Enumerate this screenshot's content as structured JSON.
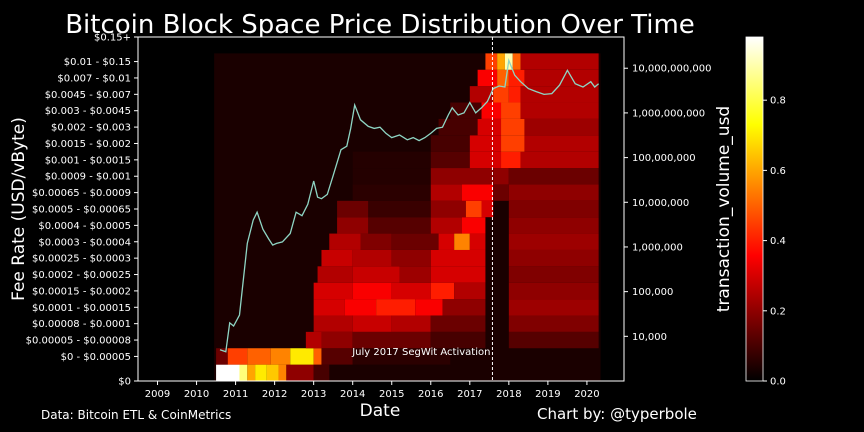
{
  "chart_data": {
    "type": "heatmap",
    "title": "Bitcoin Block Space Price Distribution Over Time",
    "xlabel": "Date",
    "ylabel": "Fee Rate (USD/vByte)",
    "y2label": "transaction_volume_usd",
    "footer_left": "Data: Bitcoin ETL & CoinMetrics",
    "footer_right": "Chart by: @typerbole",
    "annotation": {
      "text": "July 2017 SegWit Activation",
      "x": 2017.58
    },
    "xlim": [
      2008.5,
      2020.95
    ],
    "x_ticks": [
      "2009",
      "2010",
      "2011",
      "2012",
      "2013",
      "2014",
      "2015",
      "2016",
      "2017",
      "2018",
      "2019",
      "2020"
    ],
    "y_bins": [
      "$0",
      "$0 - $0.00005",
      "$0.00005 - $0.00008",
      "$0.00008 - $0.0001",
      "$0.0001 - $0.00015",
      "$0.00015 - $0.0002",
      "$0.0002 - $0.00025",
      "$0.00025 - $0.0003",
      "$0.0003 - $0.0004",
      "$0.0004 - $0.0005",
      "$0.0005 - $0.00065",
      "$0.00065 - $0.0009",
      "$0.0009 - $0.001",
      "$0.001 - $0.0015",
      "$0.0015 - $0.002",
      "$0.002 - $0.003",
      "$0.003 - $0.0045",
      "$0.0045 - $0.007",
      "$0.007 - $0.01",
      "$0.01 - $0.15",
      "$0.15+"
    ],
    "y2_scale": "log",
    "y2lim": [
      1000,
      50000000000
    ],
    "y2_ticks": [
      "10,000",
      "100,000",
      "1,000,000",
      "10,000,000",
      "100,000,000",
      "1,000,000,000",
      "10,000,000,000"
    ],
    "y2_tick_values": [
      10000,
      100000,
      1000000,
      10000000,
      100000000,
      1000000000,
      10000000000
    ],
    "colorbar": {
      "ticks": [
        "0.0",
        "0.2",
        "0.4",
        "0.6",
        "0.8"
      ],
      "tick_values": [
        0,
        0.2,
        0.4,
        0.6,
        0.8
      ],
      "max": 0.98
    },
    "heat_rows": [
      {
        "bin": 0,
        "segments": [
          [
            2010.5,
            2011.1,
            0.98
          ],
          [
            2011.1,
            2011.3,
            0.85
          ],
          [
            2011.3,
            2011.5,
            0.6
          ],
          [
            2011.5,
            2011.8,
            0.7
          ],
          [
            2011.8,
            2012.1,
            0.65
          ],
          [
            2012.1,
            2012.3,
            0.55
          ],
          [
            2012.3,
            2013.0,
            0.2
          ],
          [
            2013.0,
            2013.4,
            0.1
          ]
        ]
      },
      {
        "bin": 1,
        "segments": [
          [
            2010.5,
            2010.8,
            0.15
          ],
          [
            2010.8,
            2011.3,
            0.45
          ],
          [
            2011.3,
            2011.9,
            0.5
          ],
          [
            2011.9,
            2012.4,
            0.55
          ],
          [
            2012.4,
            2013.0,
            0.7
          ],
          [
            2013.0,
            2013.2,
            0.5
          ],
          [
            2013.2,
            2014.0,
            0.12
          ],
          [
            2014.0,
            2016.5,
            0.06
          ]
        ]
      },
      {
        "bin": 2,
        "segments": [
          [
            2012.8,
            2013.2,
            0.25
          ],
          [
            2013.2,
            2014.0,
            0.2
          ],
          [
            2014.0,
            2016.0,
            0.15
          ],
          [
            2016.0,
            2017.4,
            0.1
          ],
          [
            2018.0,
            2020.3,
            0.12
          ]
        ]
      },
      {
        "bin": 3,
        "segments": [
          [
            2013.0,
            2014.0,
            0.25
          ],
          [
            2014.0,
            2015.0,
            0.28
          ],
          [
            2015.0,
            2016.0,
            0.25
          ],
          [
            2016.0,
            2017.4,
            0.15
          ],
          [
            2018.0,
            2020.3,
            0.18
          ]
        ]
      },
      {
        "bin": 4,
        "segments": [
          [
            2013.0,
            2013.8,
            0.3
          ],
          [
            2013.8,
            2014.6,
            0.35
          ],
          [
            2014.6,
            2015.6,
            0.4
          ],
          [
            2015.6,
            2016.3,
            0.35
          ],
          [
            2016.3,
            2017.4,
            0.2
          ],
          [
            2018.0,
            2020.3,
            0.22
          ]
        ]
      },
      {
        "bin": 5,
        "segments": [
          [
            2013.0,
            2014.0,
            0.3
          ],
          [
            2014.0,
            2015.0,
            0.35
          ],
          [
            2015.0,
            2016.0,
            0.3
          ],
          [
            2016.0,
            2016.6,
            0.4
          ],
          [
            2016.6,
            2017.4,
            0.25
          ],
          [
            2018.0,
            2020.3,
            0.2
          ]
        ]
      },
      {
        "bin": 6,
        "segments": [
          [
            2013.1,
            2014.0,
            0.25
          ],
          [
            2014.0,
            2015.2,
            0.28
          ],
          [
            2015.2,
            2016.0,
            0.22
          ],
          [
            2016.0,
            2017.4,
            0.3
          ],
          [
            2018.0,
            2020.3,
            0.18
          ]
        ]
      },
      {
        "bin": 7,
        "segments": [
          [
            2013.2,
            2014.0,
            0.28
          ],
          [
            2014.0,
            2015.0,
            0.25
          ],
          [
            2015.0,
            2016.0,
            0.2
          ],
          [
            2016.0,
            2017.4,
            0.3
          ],
          [
            2018.0,
            2020.3,
            0.2
          ]
        ]
      },
      {
        "bin": 8,
        "segments": [
          [
            2013.4,
            2014.2,
            0.25
          ],
          [
            2014.2,
            2015.0,
            0.18
          ],
          [
            2015.0,
            2016.2,
            0.15
          ],
          [
            2016.2,
            2016.6,
            0.3
          ],
          [
            2016.6,
            2017.0,
            0.55
          ],
          [
            2017.0,
            2017.4,
            0.3
          ],
          [
            2018.0,
            2020.3,
            0.22
          ]
        ]
      },
      {
        "bin": 9,
        "segments": [
          [
            2013.6,
            2014.4,
            0.2
          ],
          [
            2014.4,
            2016.0,
            0.12
          ],
          [
            2016.0,
            2016.8,
            0.25
          ],
          [
            2016.8,
            2017.4,
            0.35
          ],
          [
            2018.0,
            2020.3,
            0.2
          ]
        ]
      },
      {
        "bin": 10,
        "segments": [
          [
            2013.6,
            2014.4,
            0.15
          ],
          [
            2014.4,
            2016.0,
            0.08
          ],
          [
            2016.0,
            2016.9,
            0.2
          ],
          [
            2016.9,
            2017.3,
            0.45
          ],
          [
            2017.3,
            2017.6,
            0.3
          ],
          [
            2018.0,
            2020.3,
            0.18
          ]
        ]
      },
      {
        "bin": 11,
        "segments": [
          [
            2014.0,
            2016.0,
            0.06
          ],
          [
            2016.0,
            2016.8,
            0.25
          ],
          [
            2016.8,
            2017.6,
            0.35
          ],
          [
            2017.6,
            2018.0,
            0.15
          ],
          [
            2018.0,
            2020.3,
            0.2
          ]
        ]
      },
      {
        "bin": 12,
        "segments": [
          [
            2014.0,
            2016.0,
            0.05
          ],
          [
            2016.0,
            2017.6,
            0.2
          ],
          [
            2017.6,
            2018.0,
            0.2
          ],
          [
            2018.0,
            2020.3,
            0.15
          ]
        ]
      },
      {
        "bin": 13,
        "segments": [
          [
            2014.0,
            2016.0,
            0.05
          ],
          [
            2016.0,
            2017.0,
            0.12
          ],
          [
            2017.0,
            2017.8,
            0.3
          ],
          [
            2017.8,
            2018.3,
            0.4
          ],
          [
            2018.3,
            2020.3,
            0.25
          ]
        ]
      },
      {
        "bin": 14,
        "segments": [
          [
            2016.0,
            2017.0,
            0.1
          ],
          [
            2017.0,
            2017.8,
            0.3
          ],
          [
            2017.8,
            2018.4,
            0.45
          ],
          [
            2018.4,
            2020.3,
            0.25
          ]
        ]
      },
      {
        "bin": 15,
        "segments": [
          [
            2016.2,
            2017.2,
            0.1
          ],
          [
            2017.2,
            2017.8,
            0.3
          ],
          [
            2017.8,
            2018.4,
            0.45
          ],
          [
            2018.4,
            2020.3,
            0.22
          ]
        ]
      },
      {
        "bin": 16,
        "segments": [
          [
            2016.5,
            2017.3,
            0.1
          ],
          [
            2017.3,
            2017.8,
            0.35
          ],
          [
            2017.8,
            2018.3,
            0.45
          ],
          [
            2018.3,
            2020.3,
            0.25
          ]
        ]
      },
      {
        "bin": 17,
        "segments": [
          [
            2017.0,
            2017.6,
            0.25
          ],
          [
            2017.6,
            2018.0,
            0.45
          ],
          [
            2018.0,
            2018.3,
            0.4
          ],
          [
            2018.3,
            2020.3,
            0.25
          ]
        ]
      },
      {
        "bin": 18,
        "segments": [
          [
            2017.2,
            2017.7,
            0.35
          ],
          [
            2017.7,
            2018.0,
            0.5
          ],
          [
            2018.0,
            2018.4,
            0.4
          ],
          [
            2018.4,
            2020.3,
            0.25
          ]
        ]
      },
      {
        "bin": 19,
        "segments": [
          [
            2017.4,
            2017.7,
            0.45
          ],
          [
            2017.7,
            2017.9,
            0.6
          ],
          [
            2017.9,
            2018.1,
            0.9
          ],
          [
            2018.1,
            2018.3,
            0.5
          ],
          [
            2018.3,
            2020.3,
            0.25
          ]
        ]
      }
    ],
    "volume_series": {
      "name": "transaction_volume_usd",
      "x": [
        2010.6,
        2010.75,
        2010.85,
        2010.95,
        2011.1,
        2011.3,
        2011.45,
        2011.55,
        2011.7,
        2011.85,
        2011.95,
        2012.05,
        2012.2,
        2012.4,
        2012.55,
        2012.7,
        2012.85,
        2013.0,
        2013.1,
        2013.2,
        2013.35,
        2013.5,
        2013.7,
        2013.85,
        2013.95,
        2014.05,
        2014.2,
        2014.4,
        2014.55,
        2014.7,
        2014.85,
        2015.0,
        2015.2,
        2015.4,
        2015.55,
        2015.7,
        2015.85,
        2016.0,
        2016.15,
        2016.3,
        2016.45,
        2016.55,
        2016.7,
        2016.85,
        2017.0,
        2017.15,
        2017.3,
        2017.45,
        2017.6,
        2017.75,
        2017.9,
        2018.0,
        2018.15,
        2018.3,
        2018.5,
        2018.7,
        2018.9,
        2019.1,
        2019.3,
        2019.5,
        2019.7,
        2019.9,
        2020.1,
        2020.2,
        2020.3
      ],
      "y": [
        5000,
        4500,
        20000,
        17000,
        30000,
        1200000,
        4000000,
        6000000,
        2500000,
        1500000,
        1100000,
        1200000,
        1300000,
        2000000,
        6000000,
        5000000,
        9000000,
        30000000,
        13000000,
        12000000,
        15000000,
        40000000,
        150000000,
        180000000,
        450000000,
        1500000000,
        700000000,
        500000000,
        450000000,
        480000000,
        350000000,
        280000000,
        320000000,
        250000000,
        280000000,
        240000000,
        280000000,
        350000000,
        450000000,
        480000000,
        900000000,
        1300000000,
        900000000,
        1000000000,
        1700000000,
        1000000000,
        1300000000,
        1800000000,
        3500000000,
        4000000000,
        3800000000,
        15000000000,
        7000000000,
        5000000000,
        3500000000,
        3000000000,
        2600000000,
        2700000000,
        4200000000,
        9000000000,
        4500000000,
        3800000000,
        5000000000,
        3800000000,
        4500000000
      ]
    }
  }
}
